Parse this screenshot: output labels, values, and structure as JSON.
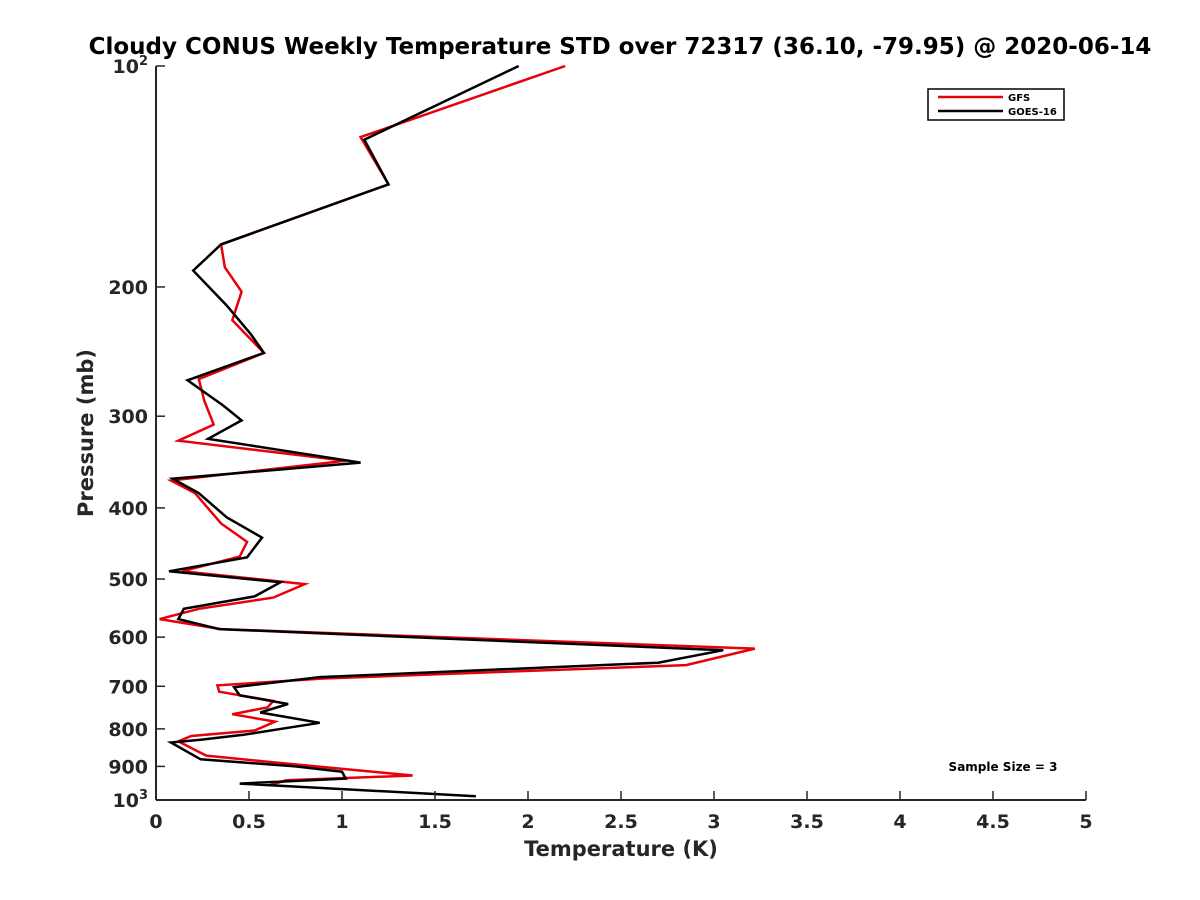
{
  "chart_data": {
    "type": "line",
    "title": "Cloudy CONUS Weekly Temperature STD over 72317 (36.10, -79.95) @ 2020-06-14",
    "xlabel": "Temperature (K)",
    "ylabel": "Pressure (mb)",
    "xlim": [
      0,
      5
    ],
    "ylim": [
      100,
      1000
    ],
    "y_scale": "log",
    "y_reversed": true,
    "x_ticks": [
      0,
      0.5,
      1,
      1.5,
      2,
      2.5,
      3,
      3.5,
      4,
      4.5,
      5
    ],
    "x_tick_labels": [
      "0",
      "0.5",
      "1",
      "1.5",
      "2",
      "2.5",
      "3",
      "3.5",
      "4",
      "4.5",
      "5"
    ],
    "y_ticks": [
      100,
      200,
      300,
      400,
      500,
      600,
      700,
      800,
      900,
      1000
    ],
    "y_tick_labels": [
      {
        "base": "10",
        "exp": "2"
      },
      {
        "base": "200",
        "exp": ""
      },
      {
        "base": "300",
        "exp": ""
      },
      {
        "base": "400",
        "exp": ""
      },
      {
        "base": "500",
        "exp": ""
      },
      {
        "base": "600",
        "exp": ""
      },
      {
        "base": "700",
        "exp": ""
      },
      {
        "base": "800",
        "exp": ""
      },
      {
        "base": "900",
        "exp": ""
      },
      {
        "base": "10",
        "exp": "3"
      }
    ],
    "grid": false,
    "legend_position": "top-right",
    "annotation": "Sample Size = 3",
    "series": [
      {
        "name": "GFS",
        "color": "#e8000b",
        "points": [
          [
            2.2,
            100
          ],
          [
            1.1,
            125
          ],
          [
            1.25,
            145
          ],
          [
            0.35,
            175
          ],
          [
            0.37,
            188
          ],
          [
            0.46,
            203
          ],
          [
            0.41,
            222
          ],
          [
            0.58,
            246
          ],
          [
            0.23,
            267
          ],
          [
            0.26,
            286
          ],
          [
            0.31,
            308
          ],
          [
            0.12,
            324
          ],
          [
            1.02,
            345
          ],
          [
            0.08,
            367
          ],
          [
            0.21,
            382
          ],
          [
            0.35,
            420
          ],
          [
            0.49,
            445
          ],
          [
            0.45,
            466
          ],
          [
            0.14,
            488
          ],
          [
            0.8,
            508
          ],
          [
            0.63,
            530
          ],
          [
            0.23,
            549
          ],
          [
            0.02,
            567
          ],
          [
            0.35,
            585
          ],
          [
            3.22,
            622
          ],
          [
            2.85,
            655
          ],
          [
            0.9,
            683
          ],
          [
            0.33,
            698
          ],
          [
            0.34,
            712
          ],
          [
            0.63,
            733
          ],
          [
            0.6,
            748
          ],
          [
            0.41,
            764
          ],
          [
            0.64,
            782
          ],
          [
            0.53,
            804
          ],
          [
            0.19,
            818
          ],
          [
            0.12,
            832
          ],
          [
            0.27,
            870
          ],
          [
            0.62,
            888
          ],
          [
            1.06,
            910
          ],
          [
            1.38,
            926
          ],
          [
            0.7,
            940
          ],
          [
            0.61,
            955
          ]
        ]
      },
      {
        "name": "GOES-16",
        "color": "#000000",
        "points": [
          [
            1.95,
            100
          ],
          [
            1.12,
            126
          ],
          [
            1.25,
            145
          ],
          [
            0.35,
            175
          ],
          [
            0.2,
            190
          ],
          [
            0.38,
            212
          ],
          [
            0.51,
            232
          ],
          [
            0.58,
            246
          ],
          [
            0.17,
            268
          ],
          [
            0.36,
            290
          ],
          [
            0.46,
            304
          ],
          [
            0.28,
            322
          ],
          [
            1.1,
            347
          ],
          [
            0.09,
            365
          ],
          [
            0.23,
            382
          ],
          [
            0.38,
            412
          ],
          [
            0.57,
            439
          ],
          [
            0.49,
            467
          ],
          [
            0.07,
            488
          ],
          [
            0.67,
            505
          ],
          [
            0.53,
            528
          ],
          [
            0.15,
            549
          ],
          [
            0.12,
            567
          ],
          [
            0.34,
            585
          ],
          [
            3.05,
            625
          ],
          [
            2.7,
            650
          ],
          [
            0.88,
            680
          ],
          [
            0.42,
            702
          ],
          [
            0.45,
            720
          ],
          [
            0.71,
            740
          ],
          [
            0.56,
            760
          ],
          [
            0.88,
            785
          ],
          [
            0.47,
            815
          ],
          [
            0.24,
            828
          ],
          [
            0.08,
            835
          ],
          [
            0.24,
            880
          ],
          [
            0.75,
            900
          ],
          [
            1.0,
            915
          ],
          [
            1.02,
            935
          ],
          [
            0.45,
            950
          ],
          [
            1.72,
            988
          ]
        ]
      }
    ]
  }
}
